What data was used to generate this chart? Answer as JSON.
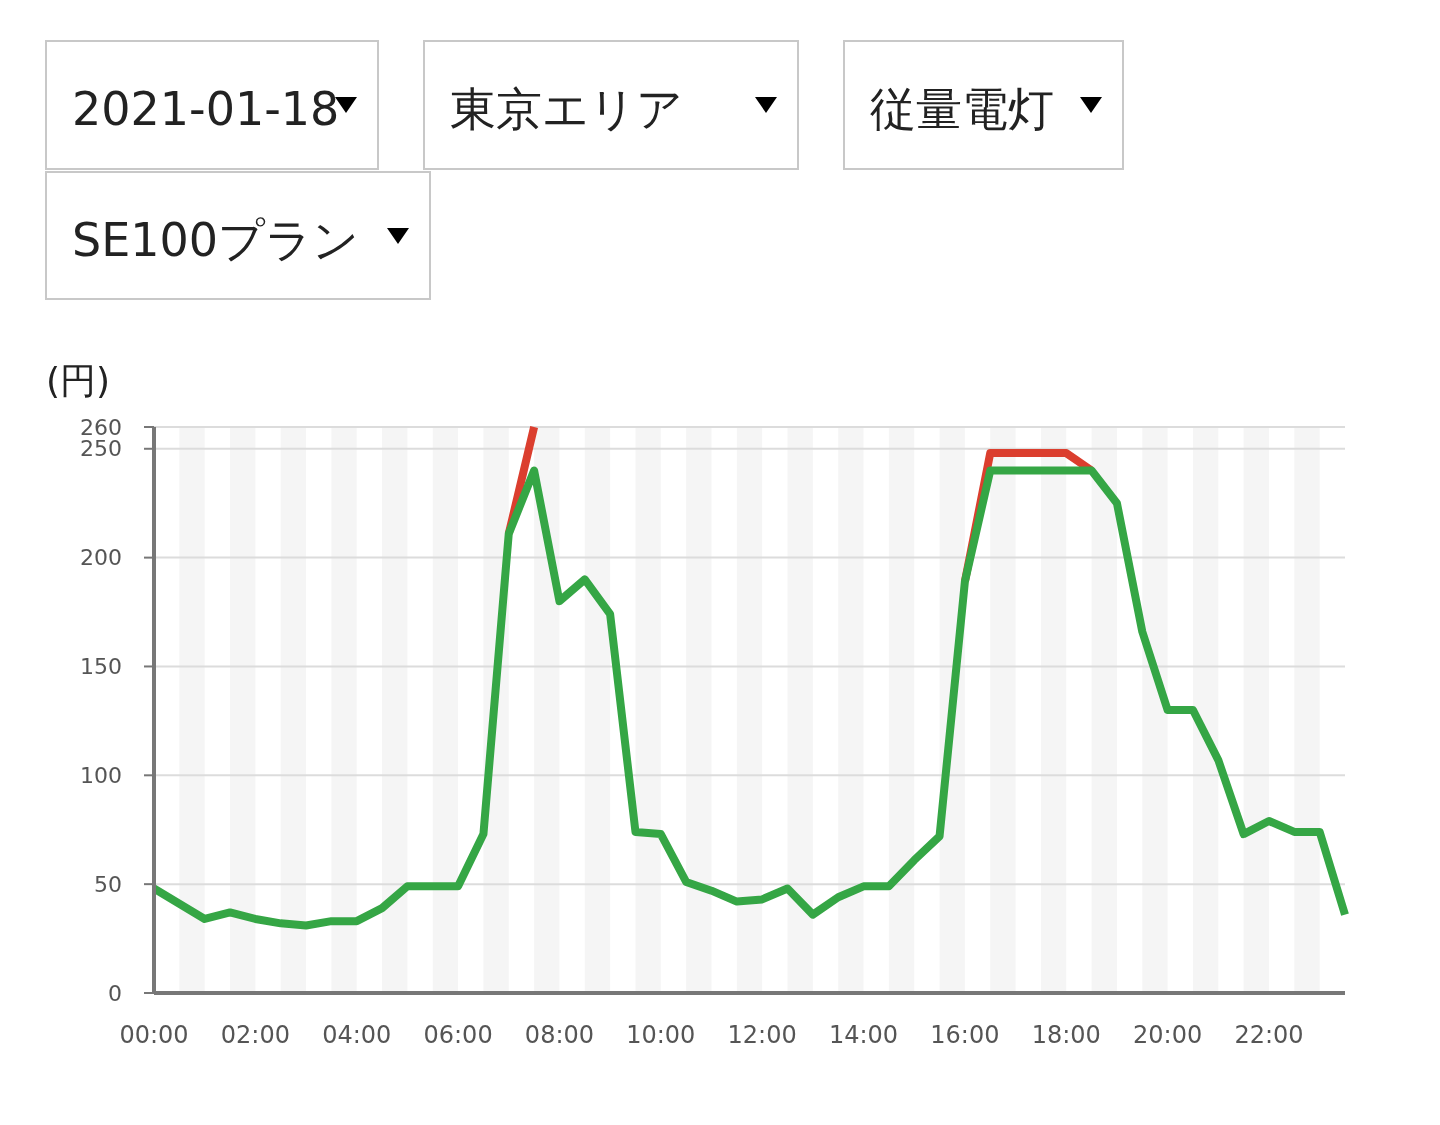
{
  "chart_data": {
    "type": "line",
    "ylabel": "(円)",
    "annotations": [
      "2021-01-18",
      "東京エリア",
      "従量電灯",
      "SE100プラン"
    ],
    "x": [
      0,
      0.5,
      1,
      1.5,
      2,
      2.5,
      3,
      3.5,
      4,
      4.5,
      5,
      5.5,
      6,
      6.5,
      7,
      7.5,
      8,
      8.5,
      9,
      9.5,
      10,
      10.5,
      11,
      11.5,
      12,
      12.5,
      13,
      13.5,
      14,
      14.5,
      15,
      15.5,
      16,
      16.5,
      17,
      17.5,
      18,
      18.5,
      19,
      19.5,
      20,
      20.5,
      21,
      21.5,
      22,
      22.5,
      23,
      23.5
    ],
    "series": [
      {
        "color": "#db3e2e",
        "values": [
          null,
          null,
          null,
          null,
          null,
          null,
          null,
          null,
          null,
          null,
          null,
          null,
          null,
          null,
          211,
          260,
          null,
          null,
          null,
          null,
          null,
          null,
          null,
          null,
          null,
          null,
          null,
          null,
          null,
          null,
          null,
          null,
          189,
          248,
          248,
          248,
          248,
          240,
          null,
          null,
          null,
          null,
          null,
          null,
          null,
          null,
          null,
          null
        ]
      },
      {
        "color": "#35a645",
        "values": [
          48,
          41,
          34,
          37,
          34,
          32,
          31,
          33,
          33,
          39,
          49,
          49,
          49,
          73,
          211,
          240,
          180,
          190,
          174,
          74,
          73,
          51,
          47,
          42,
          43,
          48,
          36,
          44,
          49,
          49,
          61,
          72,
          189,
          240,
          240,
          240,
          240,
          240,
          225,
          166,
          130,
          130,
          107,
          73,
          79,
          74,
          74,
          36
        ]
      }
    ],
    "xlim": [
      0,
      23.5
    ],
    "xticks": [
      {
        "value": 0,
        "label": "00:00"
      },
      {
        "value": 2,
        "label": "02:00"
      },
      {
        "value": 4,
        "label": "04:00"
      },
      {
        "value": 6,
        "label": "06:00"
      },
      {
        "value": 8,
        "label": "08:00"
      },
      {
        "value": 10,
        "label": "10:00"
      },
      {
        "value": 12,
        "label": "12:00"
      },
      {
        "value": 14,
        "label": "14:00"
      },
      {
        "value": 16,
        "label": "16:00"
      },
      {
        "value": 18,
        "label": "18:00"
      },
      {
        "value": 20,
        "label": "20:00"
      },
      {
        "value": 22,
        "label": "22:00"
      }
    ],
    "ylim": [
      0,
      260
    ],
    "yticks": [
      0,
      50,
      100,
      150,
      200,
      250,
      260
    ],
    "bands": [
      {
        "axis": "x",
        "from": 0.5,
        "to": 1,
        "color": "#f5f5f5"
      },
      {
        "axis": "x",
        "from": 1.5,
        "to": 2,
        "color": "#f5f5f5"
      },
      {
        "axis": "x",
        "from": 2.5,
        "to": 3,
        "color": "#f5f5f5"
      },
      {
        "axis": "x",
        "from": 3.5,
        "to": 4,
        "color": "#f5f5f5"
      },
      {
        "axis": "x",
        "from": 4.5,
        "to": 5,
        "color": "#f5f5f5"
      },
      {
        "axis": "x",
        "from": 5.5,
        "to": 6,
        "color": "#f5f5f5"
      },
      {
        "axis": "x",
        "from": 6.5,
        "to": 7,
        "color": "#f5f5f5"
      },
      {
        "axis": "x",
        "from": 7.5,
        "to": 8,
        "color": "#f5f5f5"
      },
      {
        "axis": "x",
        "from": 8.5,
        "to": 9,
        "color": "#f5f5f5"
      },
      {
        "axis": "x",
        "from": 9.5,
        "to": 10,
        "color": "#f5f5f5"
      },
      {
        "axis": "x",
        "from": 10.5,
        "to": 11,
        "color": "#f5f5f5"
      },
      {
        "axis": "x",
        "from": 11.5,
        "to": 12,
        "color": "#f5f5f5"
      },
      {
        "axis": "x",
        "from": 12.5,
        "to": 13,
        "color": "#f5f5f5"
      },
      {
        "axis": "x",
        "from": 13.5,
        "to": 14,
        "color": "#f5f5f5"
      },
      {
        "axis": "x",
        "from": 14.5,
        "to": 15,
        "color": "#f5f5f5"
      },
      {
        "axis": "x",
        "from": 15.5,
        "to": 16,
        "color": "#f5f5f5"
      },
      {
        "axis": "x",
        "from": 16.5,
        "to": 17,
        "color": "#f5f5f5"
      },
      {
        "axis": "x",
        "from": 17.5,
        "to": 18,
        "color": "#f5f5f5"
      },
      {
        "axis": "x",
        "from": 18.5,
        "to": 19,
        "color": "#f5f5f5"
      },
      {
        "axis": "x",
        "from": 19.5,
        "to": 20,
        "color": "#f5f5f5"
      },
      {
        "axis": "x",
        "from": 20.5,
        "to": 21,
        "color": "#f5f5f5"
      },
      {
        "axis": "x",
        "from": 21.5,
        "to": 22,
        "color": "#f5f5f5"
      },
      {
        "axis": "x",
        "from": 22.5,
        "to": 23,
        "color": "#f5f5f5"
      }
    ],
    "grid": "y",
    "marker": "none",
    "line_style": "solid"
  }
}
